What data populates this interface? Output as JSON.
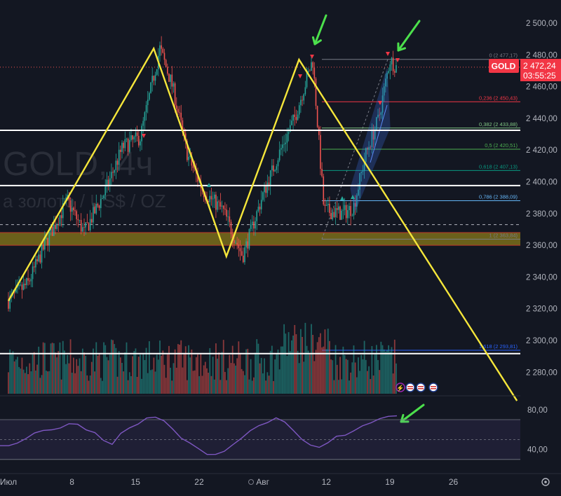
{
  "symbol": "GOLD",
  "watermark": {
    "title": "GOLD, 4ч",
    "subtitle": "а золото / US$ / OZ"
  },
  "current_price": {
    "label": "GOLD",
    "price": "2 472,24",
    "countdown": "03:55:25",
    "value": 2472.24
  },
  "colors": {
    "background": "#131722",
    "bull": "#26a69a",
    "bear": "#ef5350",
    "pattern": "#f5e63a",
    "arrow": "#4ce04c",
    "rsi": "#7e57c2",
    "level": "#ffffff",
    "zone": "#8a7a1a",
    "channel": "#3b6fe0"
  },
  "price_axis": {
    "ticks": [
      "2 500,00",
      "2 480,00",
      "2 460,00",
      "2 440,00",
      "2 420,00",
      "2 400,00",
      "2 380,00",
      "2 360,00",
      "2 340,00",
      "2 320,00",
      "2 300,00",
      "2 280,00"
    ]
  },
  "level_labels": [
    {
      "text": "2 432,44",
      "value": 2432.44
    },
    {
      "text": "2 397,61",
      "value": 2397.61
    },
    {
      "text": "2 291,72",
      "value": 2291.72
    }
  ],
  "fib_levels": [
    {
      "text": "0 (2 477,17)",
      "value": 2477.17,
      "color": "#787b86"
    },
    {
      "text": "0,236 (2 450,43)",
      "value": 2450.43,
      "color": "#f23645"
    },
    {
      "text": "0,382 (2 433,88)",
      "value": 2433.88,
      "color": "#81c784"
    },
    {
      "text": "0,5 (2 420,51)",
      "value": 2420.51,
      "color": "#4caf50"
    },
    {
      "text": "0,618 (2 407,13)",
      "value": 2407.13,
      "color": "#089981"
    },
    {
      "text": "0,786 (2 388,09)",
      "value": 2388.09,
      "color": "#64b5f6"
    },
    {
      "text": "1 (2 363,84)",
      "value": 2363.84,
      "color": "#787b86"
    },
    {
      "text": "1,618 (2 293,81)",
      "value": 2293.81,
      "color": "#2962ff"
    }
  ],
  "time_axis": {
    "ticks": [
      "Июл",
      "8",
      "15",
      "22",
      "Авг",
      "12",
      "19",
      "26"
    ]
  },
  "rsi": {
    "ticks": [
      "80,00",
      "40,00"
    ],
    "upper": 70,
    "lower": 30
  },
  "chart_data": {
    "type": "candlestick",
    "ylim": [
      2270,
      2510
    ],
    "x": [
      "2024-07-01",
      "2024-07-08",
      "2024-07-15",
      "2024-07-22",
      "2024-07-29",
      "2024-08-05",
      "2024-08-12",
      "2024-08-19",
      "2024-08-26"
    ],
    "pattern_points": [
      {
        "date": "2024-07-01",
        "price": 2325
      },
      {
        "date": "2024-07-17",
        "price": 2484
      },
      {
        "date": "2024-07-25",
        "price": 2353
      },
      {
        "date": "2024-08-02",
        "price": 2477
      },
      {
        "date": "2024-08-26",
        "price": 2262
      }
    ],
    "swing_highs": [
      {
        "date": "2024-08-02",
        "price": 2477
      },
      {
        "date": "2024-08-14",
        "price": 2477
      }
    ],
    "rsi_series": [
      45,
      42,
      48,
      52,
      56,
      60,
      58,
      63,
      67,
      64,
      60,
      55,
      50,
      47,
      55,
      62,
      66,
      70,
      72,
      68,
      60,
      52,
      45,
      40,
      37,
      35,
      40,
      45,
      52,
      58,
      64,
      69,
      70,
      66,
      58,
      50,
      44,
      42,
      46,
      52,
      55,
      58,
      62,
      66,
      70,
      72,
      73
    ]
  }
}
